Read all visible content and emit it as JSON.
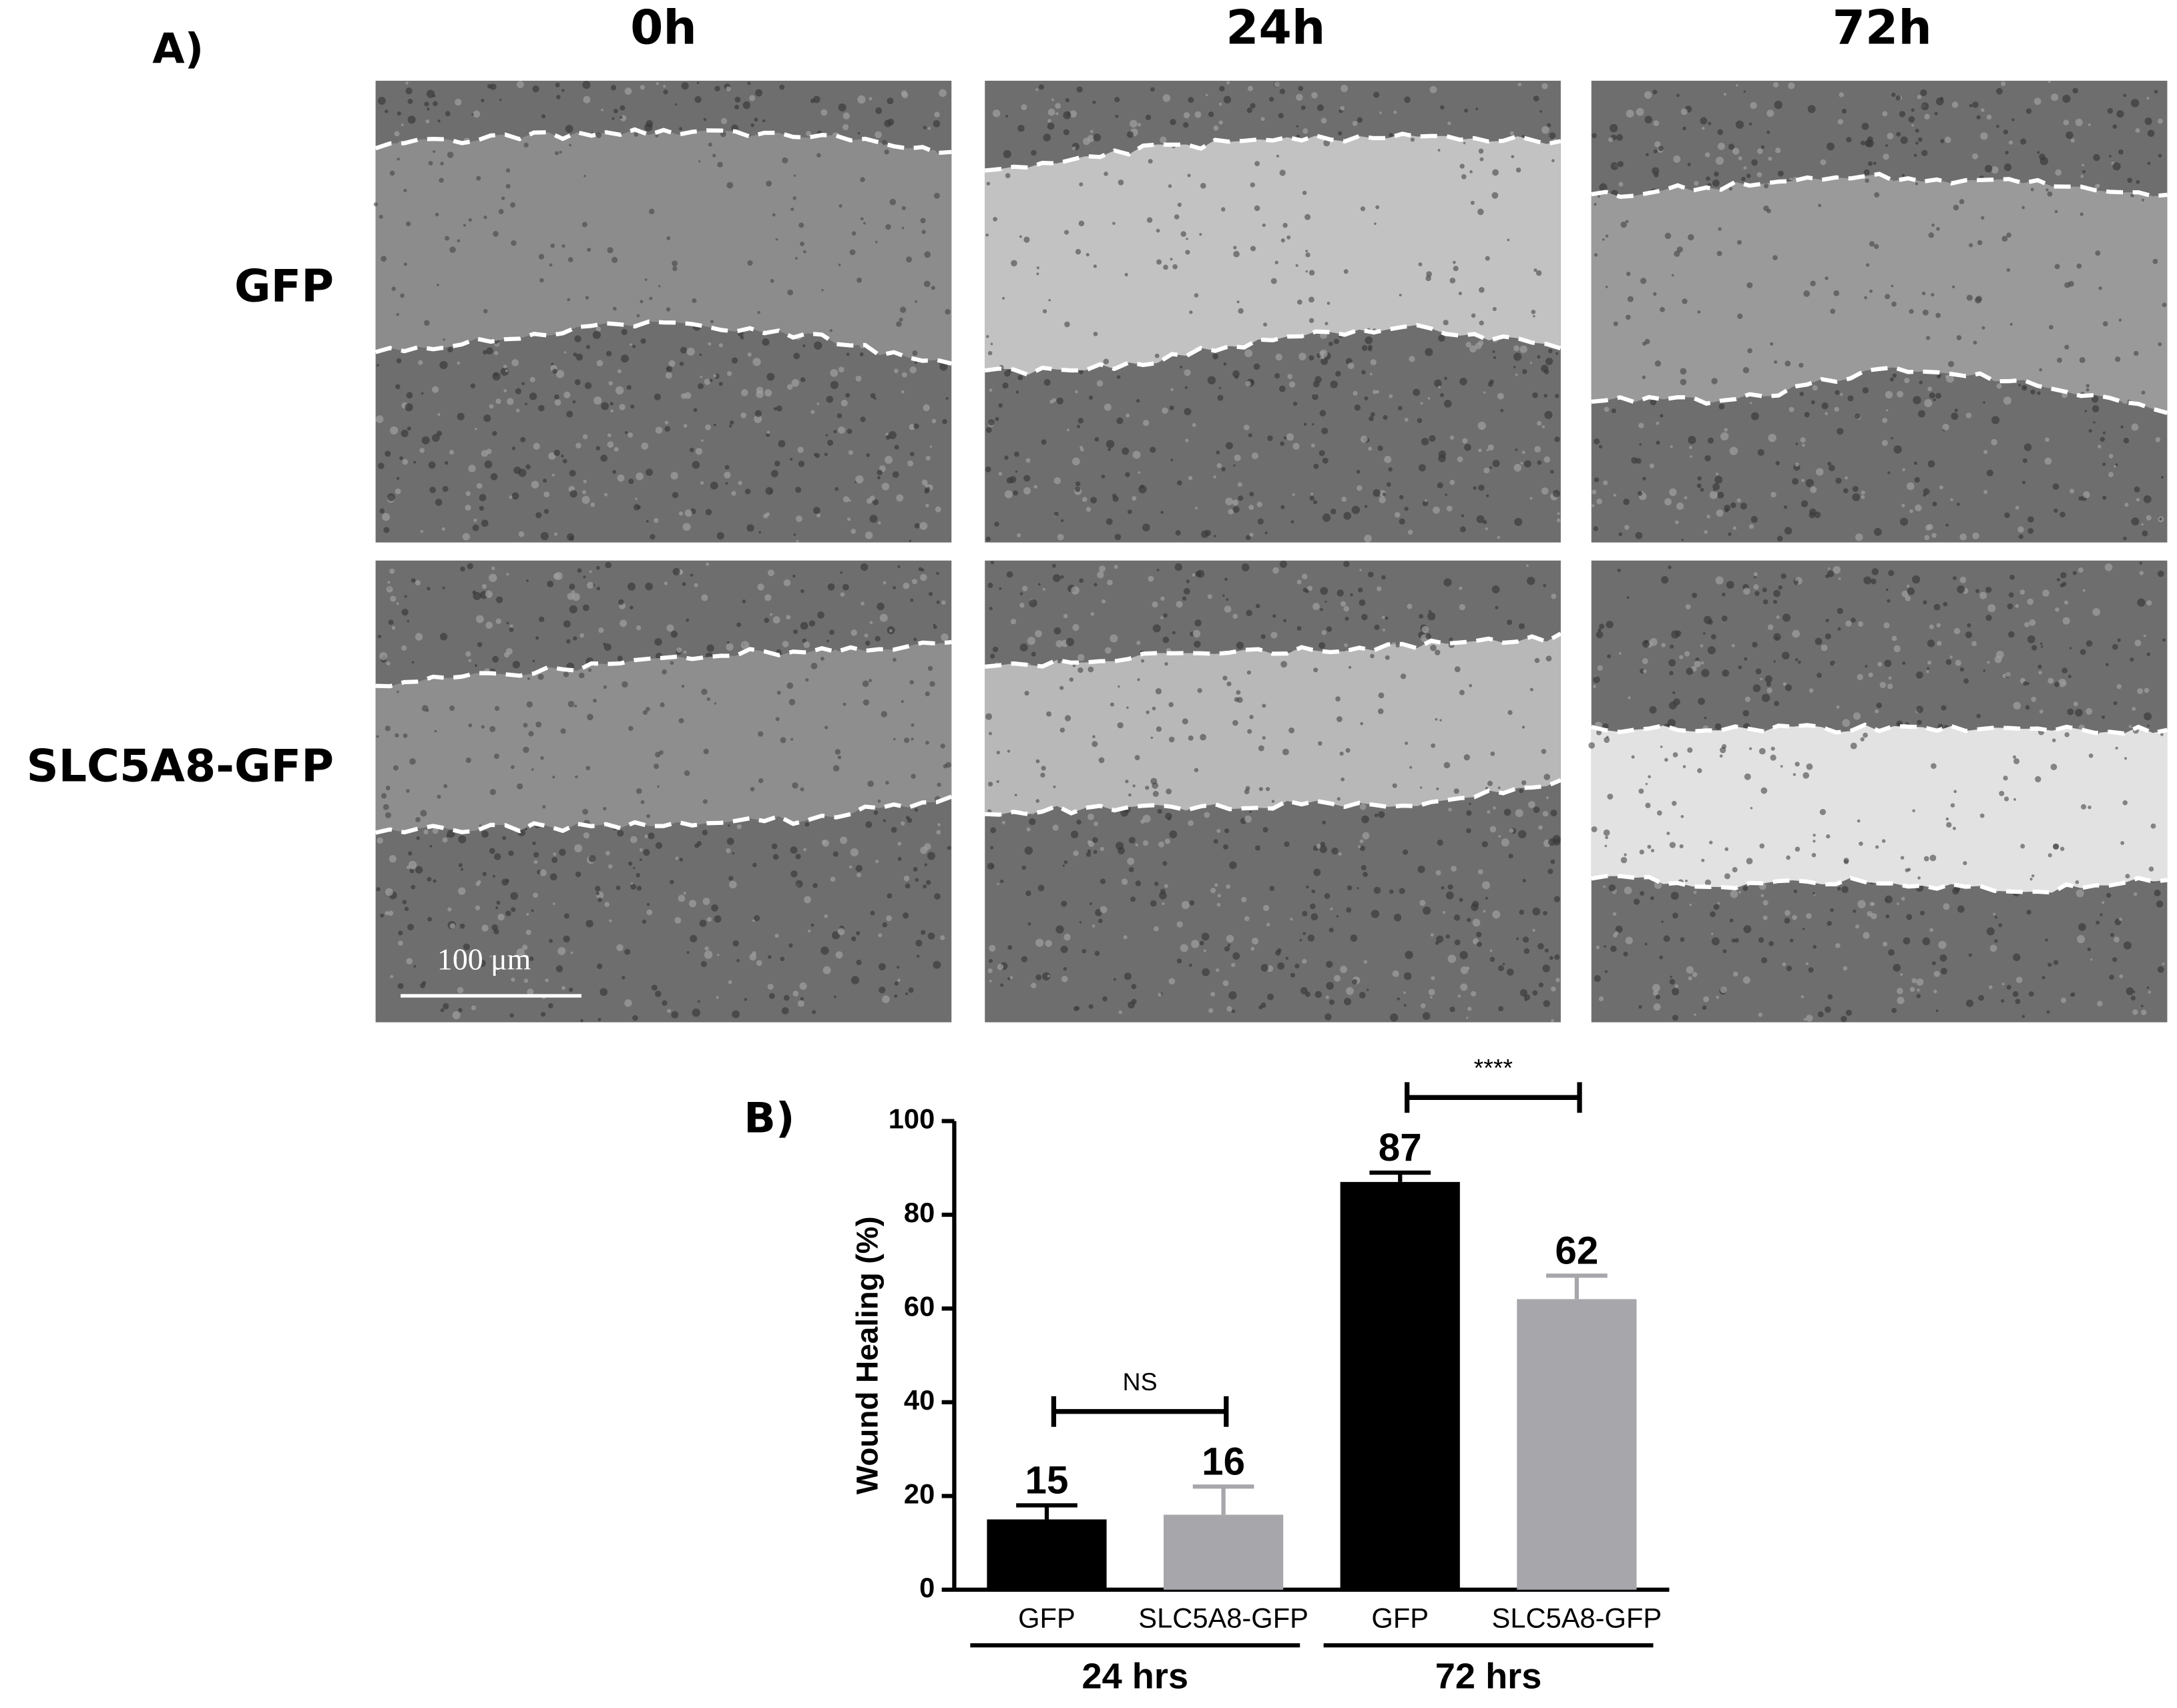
{
  "panel_a": {
    "label": "A)",
    "columns": [
      "0h",
      "24h",
      "72h"
    ],
    "rows": [
      "GFP",
      "SLC5A8-GFP"
    ],
    "scale_bar": "100 μm"
  },
  "chart_data": {
    "type": "bar",
    "panel_label": "B)",
    "y_label": "Wound Healing (%)",
    "categories": [
      "GFP",
      "SLC5A8-GFP",
      "GFP",
      "SLC5A8-GFP"
    ],
    "values": [
      15,
      16,
      87,
      62
    ],
    "errors": [
      3,
      6,
      2,
      5
    ],
    "colors": [
      "#000000",
      "#a6a6ab",
      "#000000",
      "#a6a6ab"
    ],
    "groups": [
      "24 hrs",
      "72 hrs"
    ],
    "comparisons": [
      "NS",
      "****"
    ],
    "ylim": [
      0,
      100
    ],
    "yticks": [
      0,
      20,
      40,
      60,
      80,
      100
    ]
  }
}
